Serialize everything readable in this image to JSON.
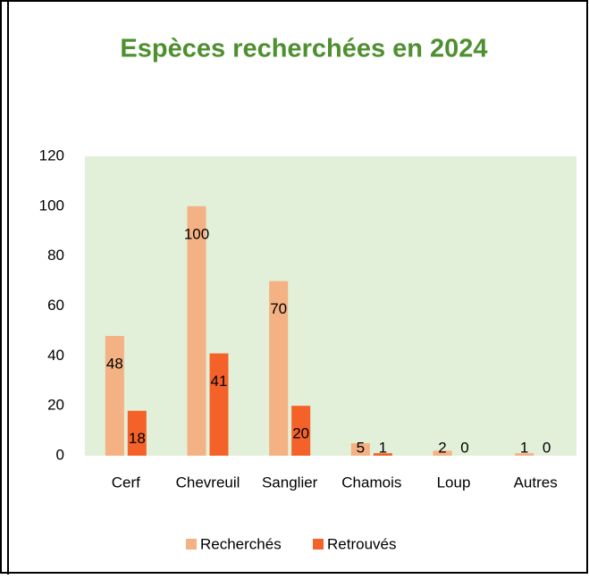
{
  "chart_data": {
    "type": "bar",
    "title": "Espèces recherchées en 2024",
    "categories": [
      "Cerf",
      "Chevreuil",
      "Sanglier",
      "Chamois",
      "Loup",
      "Autres"
    ],
    "series": [
      {
        "name": "Recherchés",
        "color": "#f4b183",
        "values": [
          48,
          100,
          70,
          5,
          2,
          1
        ]
      },
      {
        "name": "Retrouvés",
        "color": "#f4622a",
        "values": [
          18,
          41,
          20,
          1,
          0,
          0
        ]
      }
    ],
    "ylim": [
      0,
      120
    ],
    "yticks": [
      0,
      20,
      40,
      60,
      80,
      100,
      120
    ],
    "grid": false,
    "legend": "bottom"
  }
}
